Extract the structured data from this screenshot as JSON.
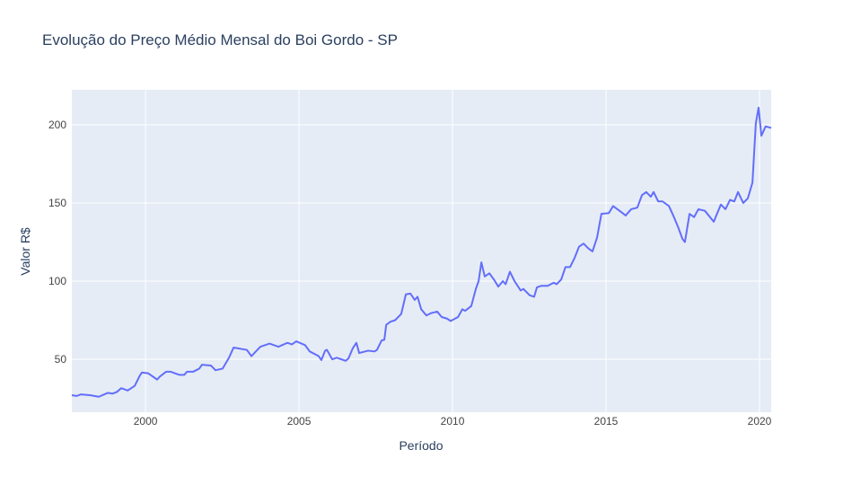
{
  "chart_data": {
    "type": "line",
    "title": "Evolução do Preço Médio Mensal do Boi Gordo - SP",
    "x_label": "Período",
    "y_label": "Valor R$",
    "x": [
      1997.6,
      1997.75,
      1997.89,
      1998.19,
      1998.48,
      1998.77,
      1998.92,
      1999.06,
      1999.21,
      1999.42,
      1999.65,
      1999.8,
      1999.88,
      2000.09,
      2000.38,
      2000.47,
      2000.67,
      2000.82,
      2001.11,
      2001.26,
      2001.35,
      2001.55,
      2001.75,
      2001.84,
      2002.13,
      2002.28,
      2002.51,
      2002.63,
      2002.72,
      2002.87,
      2003.3,
      2003.45,
      2003.74,
      2004.04,
      2004.33,
      2004.62,
      2004.77,
      2004.91,
      2005.2,
      2005.35,
      2005.64,
      2005.73,
      2005.85,
      2005.91,
      2006.08,
      2006.23,
      2006.52,
      2006.61,
      2006.75,
      2006.87,
      2006.96,
      2007.25,
      2007.46,
      2007.54,
      2007.69,
      2007.78,
      2007.84,
      2007.98,
      2008.13,
      2008.33,
      2008.48,
      2008.63,
      2008.77,
      2008.86,
      2008.98,
      2009.15,
      2009.3,
      2009.5,
      2009.65,
      2009.82,
      2009.94,
      2010.18,
      2010.32,
      2010.41,
      2010.61,
      2010.76,
      2010.85,
      2010.94,
      2011.05,
      2011.2,
      2011.35,
      2011.49,
      2011.64,
      2011.73,
      2011.87,
      2012.02,
      2012.22,
      2012.31,
      2012.51,
      2012.66,
      2012.75,
      2012.89,
      2013.1,
      2013.3,
      2013.39,
      2013.54,
      2013.68,
      2013.83,
      2013.98,
      2014.12,
      2014.27,
      2014.42,
      2014.56,
      2014.71,
      2014.85,
      2015.09,
      2015.23,
      2015.44,
      2015.64,
      2015.82,
      2016.02,
      2016.17,
      2016.31,
      2016.46,
      2016.55,
      2016.7,
      2016.84,
      2017.05,
      2017.19,
      2017.34,
      2017.49,
      2017.57,
      2017.72,
      2017.87,
      2018.01,
      2018.22,
      2018.51,
      2018.74,
      2018.89,
      2019.04,
      2019.18,
      2019.3,
      2019.47,
      2019.62,
      2019.77,
      2019.88,
      2019.97,
      2020.06,
      2020.2,
      2020.38
    ],
    "series": [
      {
        "name": "Valor R$",
        "color": "#636efa",
        "values": [
          27,
          26.5,
          27.5,
          27,
          26,
          28.5,
          28,
          29,
          31.5,
          30,
          33,
          39,
          41.5,
          41,
          37,
          39,
          42,
          42,
          40,
          40,
          42,
          42,
          44,
          46.5,
          46,
          43,
          44,
          48,
          51,
          57.5,
          56,
          52,
          58,
          60,
          58,
          60.5,
          59.5,
          61.5,
          59,
          55,
          52,
          49.5,
          55.5,
          56,
          50,
          51,
          49,
          50.5,
          57,
          60.5,
          54,
          55.5,
          55,
          56,
          62,
          62.5,
          72,
          74,
          75,
          79,
          91.5,
          92,
          88,
          90,
          82,
          78,
          79.5,
          80.5,
          77,
          76,
          74.5,
          77,
          82,
          81,
          84,
          95,
          100,
          112,
          103,
          105,
          101,
          96.5,
          100,
          98,
          106,
          100,
          94,
          95,
          91,
          90,
          96,
          97,
          97,
          99,
          98,
          101,
          109,
          109,
          115,
          122,
          124,
          121,
          119,
          128,
          143,
          143.5,
          148,
          145,
          142,
          146,
          147,
          155,
          157,
          154,
          157,
          151,
          151,
          148,
          142,
          135,
          127,
          125,
          143,
          141,
          146,
          145,
          138,
          149,
          146,
          152,
          151,
          157,
          150,
          153,
          163,
          201,
          211,
          193,
          199,
          198
        ]
      }
    ],
    "xlim": [
      1997.6,
      2020.38
    ],
    "ylim": [
      16.1,
      222.4
    ],
    "xticks": [
      2000,
      2005,
      2010,
      2015,
      2020
    ],
    "yticks": [
      50,
      100,
      150,
      200
    ],
    "grid": true
  }
}
